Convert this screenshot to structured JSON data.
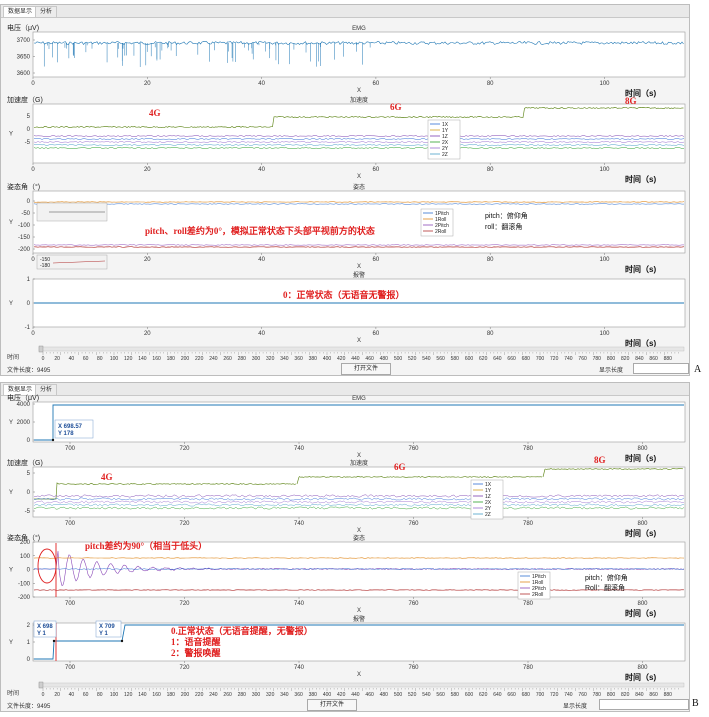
{
  "tabs": [
    "数据显示",
    "分析"
  ],
  "panel_a": {
    "marker": "A",
    "emg": {
      "ylabel": "电压（μV)",
      "title": "EMG",
      "yticks": [
        "3700",
        "3650",
        "3600"
      ],
      "xticks": [
        "0",
        "20",
        "40",
        "60",
        "80",
        "100"
      ],
      "xlabel": "X",
      "time_label": "时间（s)"
    },
    "acc": {
      "ylabel": "加速度（G)",
      "title": "加速度",
      "ytick_labels": [
        "5",
        "0",
        "-5"
      ],
      "yaxis_letter": "Y",
      "xticks": [
        "0",
        "20",
        "40",
        "60",
        "80",
        "100"
      ],
      "xlabel": "X",
      "time_label": "时间（s)",
      "annotations": [
        "4G",
        "6G",
        "8G"
      ],
      "legend": [
        "1X",
        "1Y",
        "1Z",
        "2X",
        "2Y",
        "2Z"
      ]
    },
    "att": {
      "ylabel": "姿态角（°)",
      "title": "姿态",
      "yticks": [
        "0",
        "-50",
        "-100",
        "-150",
        "-200"
      ],
      "yaxis_letter": "Y",
      "xticks": [
        "0",
        "20",
        "40",
        "60",
        "80",
        "100"
      ],
      "xlabel": "X",
      "time_label": "时间（s)",
      "legend": [
        "1Pitch",
        "1Roll",
        "2Pitch",
        "2Roll"
      ],
      "note_pitch": "pitch：俯仰角",
      "note_roll": "roll：翻滚角",
      "annotation": "pitch、roll差约为0°，模拟正常状态下头部平视前方的状态",
      "inset_ticks": [
        "-150",
        "-180"
      ]
    },
    "alarm": {
      "title": "报警",
      "yticks": [
        "1",
        "0",
        "-1"
      ],
      "yaxis_letter": "Y",
      "xticks": [
        "0",
        "20",
        "40",
        "60",
        "80",
        "100"
      ],
      "xlabel": "X",
      "time_label": "时间（s)",
      "annotation": "0：正常状态（无语音无警报）"
    },
    "scroll": {
      "label": "时间",
      "ticks": [
        "0",
        "20",
        "40",
        "60",
        "80",
        "100",
        "120",
        "140",
        "160",
        "180",
        "200",
        "220",
        "240",
        "260",
        "280",
        "300",
        "320",
        "340",
        "360",
        "380",
        "400",
        "420",
        "440",
        "460",
        "480",
        "500",
        "520",
        "540",
        "560",
        "580",
        "600",
        "620",
        "640",
        "660",
        "680",
        "700",
        "720",
        "740",
        "760",
        "780",
        "800",
        "820",
        "840",
        "860",
        "880"
      ]
    },
    "footer": {
      "file_length": "文件长度：9495",
      "open_button": "打开文件",
      "display_length": "显示长度"
    }
  },
  "panel_b": {
    "marker": "B",
    "emg": {
      "ylabel": "电压（μV)",
      "title": "EMG",
      "yticks": [
        "4000",
        "2000",
        "0"
      ],
      "yaxis_letter": "Y",
      "xticks": [
        "700",
        "720",
        "740",
        "760",
        "780",
        "800"
      ],
      "xlabel": "X",
      "time_label": "时间（s)",
      "tooltip_x": "X 698.57",
      "tooltip_y": "Y 178"
    },
    "acc": {
      "ylabel": "加速度（G)",
      "title": "加速度",
      "yticks": [
        "5",
        "0",
        "-5"
      ],
      "yaxis_letter": "Y",
      "xticks": [
        "700",
        "720",
        "740",
        "760",
        "780",
        "800"
      ],
      "xlabel": "X",
      "time_label": "时间（s)",
      "annotations": [
        "4G",
        "6G",
        "8G"
      ],
      "legend": [
        "1X",
        "1Y",
        "1Z",
        "2X",
        "2Y",
        "2Z"
      ]
    },
    "att": {
      "ylabel": "姿态角（°)",
      "title": "姿态",
      "yticks": [
        "200",
        "100",
        "0",
        "-100",
        "-200"
      ],
      "yaxis_letter": "Y",
      "xticks": [
        "700",
        "720",
        "740",
        "760",
        "780",
        "800"
      ],
      "xlabel": "X",
      "time_label": "时间（s)",
      "legend": [
        "1Pitch",
        "1Roll",
        "2Pitch",
        "2Roll"
      ],
      "note_pitch": "pitch：俯仰角",
      "note_roll": "Roll：翻滚角",
      "annotation": "pitch差约为90°（相当于低头）"
    },
    "alarm": {
      "title": "报警",
      "yticks": [
        "2",
        "1",
        "0"
      ],
      "yaxis_letter": "Y",
      "xticks": [
        "700",
        "720",
        "740",
        "760",
        "780",
        "800"
      ],
      "xlabel": "X",
      "time_label": "时间（s)",
      "tooltip1_x": "X 698",
      "tooltip1_y": "Y 1",
      "tooltip2_x": "X 709",
      "tooltip2_y": "Y 1",
      "annotation_1": "0.正常状态（无语音提醒，无警报）",
      "annotation_2": "1：语音提醒",
      "annotation_3": "2：警报唤醒"
    },
    "scroll": {
      "label": "时间"
    },
    "footer": {
      "file_length": "文件长度：9495",
      "open_button": "打开文件",
      "display_length": "显示长度"
    }
  },
  "colors": {
    "emg": "#1f77b4",
    "x1": "#2f6fd6",
    "y1": "#d4a020",
    "z1": "#7b3fb0",
    "x2": "#2aa02a",
    "y2": "#9a6fd0",
    "z2": "#4aa0c8",
    "pitch1": "#2e6fd0",
    "roll1": "#e08a20",
    "pitch2": "#8b4ab8",
    "roll2": "#b03030",
    "accgreen": "#6b8f2a",
    "red": "#e02020"
  }
}
